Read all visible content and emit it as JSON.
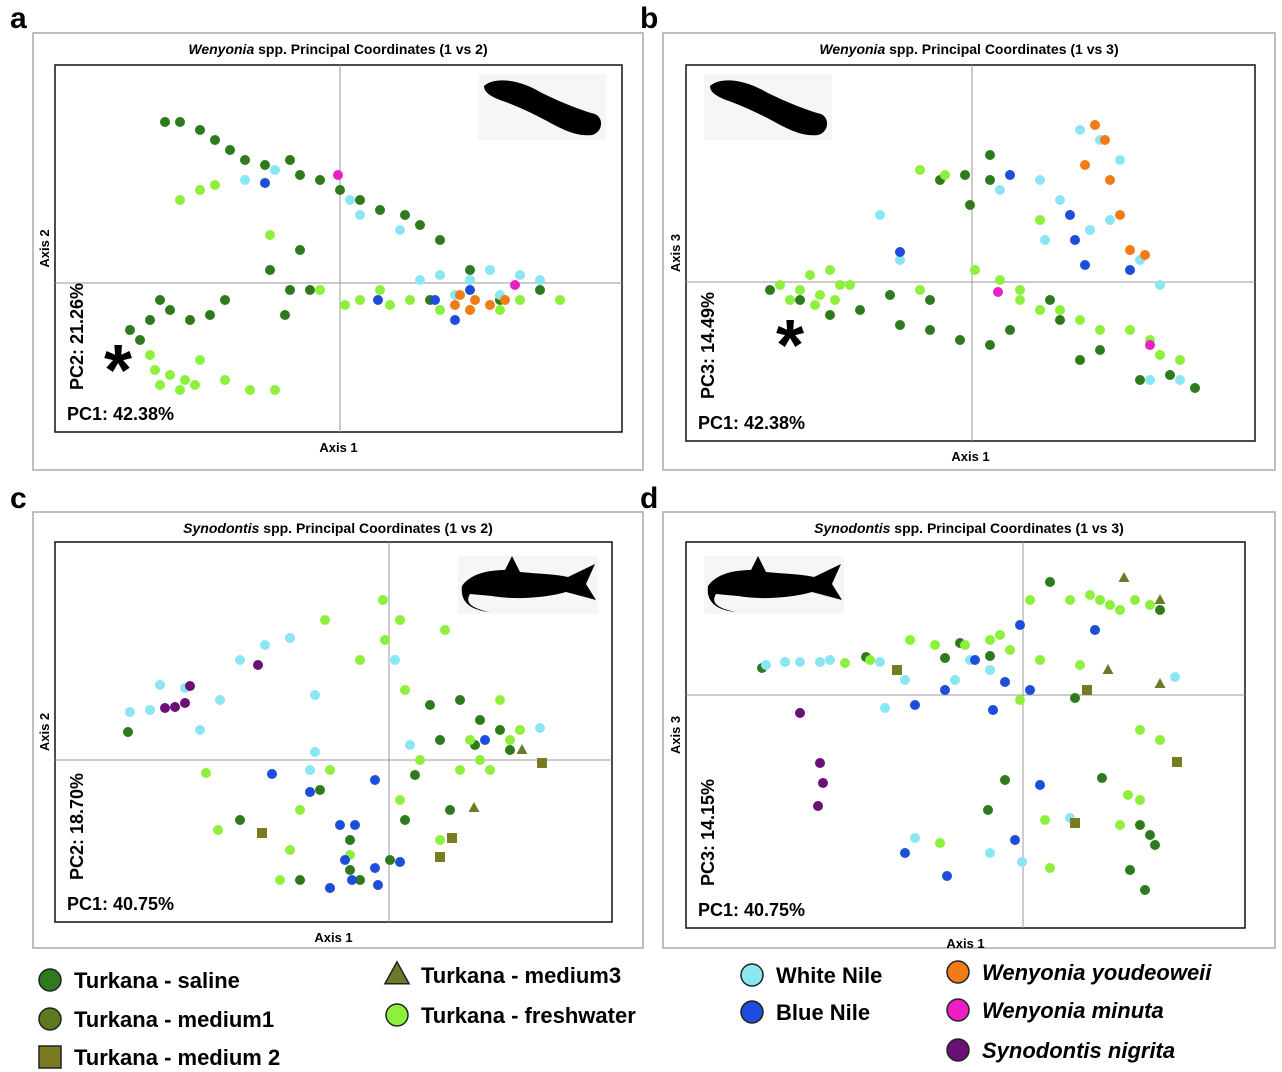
{
  "chart_data": [
    {
      "type": "scatter",
      "panel_label": "a",
      "title_italic": "Wenyonia",
      "title_rest": " spp. Principal Coordinates (1 vs 2)",
      "xlabel": "Axis 1",
      "ylabel": "Axis 2",
      "pc_x_label": "PC1: 42.38%",
      "pc_y_label": "PC2: 21.26%",
      "annotation": "*",
      "xlim": [
        -2.85,
        2.82
      ],
      "ylim": [
        -1.49,
        2.18
      ],
      "series": [
        {
          "name": "Turkana - saline",
          "color": "#2f7a1c",
          "marker": "circle",
          "x": [
            -1.75,
            -1.6,
            -1.4,
            -1.25,
            -1.1,
            -0.95,
            -0.75,
            -0.5,
            -0.4,
            -0.2,
            0,
            0.2,
            0.4,
            0.65,
            0.8,
            1.0,
            -0.4,
            -0.5,
            -0.55,
            -0.7,
            -0.3,
            -2.1,
            -1.9,
            -1.7,
            -1.5,
            -1.3,
            -1.15,
            -1.8,
            -2.0,
            1.3,
            1.6,
            2.0,
            0.9
          ],
          "y": [
            1.61,
            1.61,
            1.53,
            1.43,
            1.33,
            1.23,
            1.18,
            1.23,
            1.08,
            1.03,
            0.93,
            0.83,
            0.73,
            0.68,
            0.58,
            0.43,
            0.33,
            -0.07,
            -0.32,
            0.13,
            -0.07,
            -0.47,
            -0.37,
            -0.27,
            -0.37,
            -0.32,
            -0.17,
            -0.17,
            -0.57,
            0.13,
            -0.17,
            -0.07,
            -0.17
          ]
        },
        {
          "name": "Turkana - freshwater",
          "color": "#8cf03c",
          "marker": "circle",
          "x": [
            -1.6,
            -1.4,
            -1.25,
            -0.7,
            -0.2,
            0.05,
            0.2,
            0.5,
            0.7,
            1.0,
            1.3,
            1.6,
            1.8,
            -1.85,
            -1.7,
            -1.55,
            -1.4,
            -1.8,
            -1.6,
            -1.15,
            -0.9,
            -0.65,
            0.4,
            2.2,
            -1.9,
            -1.45
          ],
          "y": [
            0.83,
            0.93,
            0.98,
            0.48,
            -0.07,
            -0.22,
            -0.17,
            -0.22,
            -0.17,
            -0.27,
            -0.27,
            -0.27,
            -0.17,
            -0.87,
            -0.92,
            -0.97,
            -0.77,
            -1.02,
            -1.07,
            -0.97,
            -1.07,
            -1.07,
            -0.07,
            -0.17,
            -0.72,
            -1.02
          ]
        },
        {
          "name": "White Nile",
          "color": "#8ae6f2",
          "marker": "circle",
          "x": [
            -0.95,
            -0.65,
            0.2,
            0.6,
            0.8,
            1.0,
            1.3,
            1.5,
            1.8,
            2.0,
            1.6,
            1.15,
            0.1
          ],
          "y": [
            1.03,
            1.13,
            0.68,
            0.53,
            0.03,
            0.08,
            0.03,
            0.13,
            0.08,
            0.03,
            -0.12,
            -0.12,
            0.83
          ]
        },
        {
          "name": "Blue Nile",
          "color": "#1c4edb",
          "marker": "circle",
          "x": [
            -0.75,
            0.38,
            0.95,
            1.15,
            1.3
          ],
          "y": [
            1.0,
            -0.17,
            -0.17,
            -0.37,
            -0.07
          ]
        },
        {
          "name": "Wenyonia youdeoweii",
          "color": "#f07b17",
          "marker": "circle",
          "x": [
            1.2,
            1.35,
            1.5,
            1.65,
            1.3,
            1.15
          ],
          "y": [
            -0.12,
            -0.17,
            -0.22,
            -0.17,
            -0.27,
            -0.22
          ]
        },
        {
          "name": "Wenyonia minuta",
          "color": "#ec1fc6",
          "marker": "circle",
          "x": [
            -0.02,
            1.75
          ],
          "y": [
            1.08,
            -0.02
          ]
        }
      ]
    },
    {
      "type": "scatter",
      "panel_label": "b",
      "title_italic": "Wenyonia",
      "title_rest": " spp. Principal Coordinates (1 vs 3)",
      "xlabel": "Axis 1",
      "ylabel": "Axis 3",
      "pc_x_label": "PC1: 42.38%",
      "pc_y_label": "PC3: 14.49%",
      "annotation": "*",
      "xlim": [
        -2.86,
        2.83
      ],
      "ylim": [
        -1.59,
        2.17
      ],
      "series": [
        {
          "name": "Turkana - saline",
          "color": "#2f7a1c",
          "marker": "circle",
          "x": [
            -2.02,
            -1.72,
            -1.42,
            -1.12,
            -0.72,
            -0.42,
            -0.12,
            0.18,
            0.38,
            -0.42,
            -0.82,
            -0.07,
            -0.32,
            -0.02,
            0.18,
            0.18,
            0.88,
            1.28,
            1.68,
            1.98,
            2.23,
            1.08,
            0.78
          ],
          "y": [
            -0.08,
            -0.18,
            -0.33,
            -0.28,
            -0.43,
            -0.48,
            -0.58,
            -0.63,
            -0.48,
            -0.18,
            -0.13,
            1.07,
            1.02,
            0.77,
            1.02,
            1.27,
            -0.38,
            -0.68,
            -0.98,
            -0.93,
            -1.06,
            -0.78,
            -0.18
          ]
        },
        {
          "name": "Turkana - freshwater",
          "color": "#8cf03c",
          "marker": "circle",
          "x": [
            -1.92,
            -1.72,
            -1.52,
            -1.32,
            -1.62,
            -1.42,
            -1.22,
            -0.52,
            -0.27,
            0.03,
            0.28,
            0.48,
            0.68,
            0.88,
            1.08,
            1.28,
            1.58,
            1.78,
            1.88,
            2.08,
            0.68,
            0.48,
            -0.52,
            -1.82,
            -1.57,
            -1.37
          ],
          "y": [
            -0.03,
            -0.08,
            -0.13,
            -0.03,
            0.07,
            0.12,
            -0.03,
            1.12,
            1.07,
            0.12,
            0.02,
            -0.18,
            -0.28,
            -0.28,
            -0.38,
            -0.48,
            -0.48,
            -0.58,
            -0.73,
            -0.78,
            0.62,
            -0.08,
            -0.08,
            -0.18,
            -0.23,
            -0.18
          ]
        },
        {
          "name": "White Nile",
          "color": "#8ae6f2",
          "marker": "circle",
          "x": [
            -0.92,
            -0.72,
            0.28,
            0.68,
            1.08,
            1.28,
            1.48,
            0.88,
            1.18,
            1.68,
            1.88,
            2.08,
            1.78,
            0.73,
            1.38
          ],
          "y": [
            0.67,
            0.22,
            0.92,
            1.02,
            1.52,
            1.42,
            1.22,
            0.82,
            0.52,
            0.22,
            -0.03,
            -0.98,
            -0.98,
            0.42,
            0.62
          ]
        },
        {
          "name": "Blue Nile",
          "color": "#1c4edb",
          "marker": "circle",
          "x": [
            -0.72,
            0.38,
            0.98,
            1.13,
            1.58,
            1.03
          ],
          "y": [
            0.3,
            1.07,
            0.67,
            0.17,
            0.12,
            0.42
          ]
        },
        {
          "name": "Wenyonia youdeoweii",
          "color": "#f07b17",
          "marker": "circle",
          "x": [
            1.23,
            1.33,
            1.13,
            1.48,
            1.58,
            1.73,
            1.38
          ],
          "y": [
            1.57,
            1.42,
            1.17,
            0.67,
            0.32,
            0.27,
            1.02
          ]
        },
        {
          "name": "Wenyonia minuta",
          "color": "#ec1fc6",
          "marker": "circle",
          "x": [
            0.26,
            1.78
          ],
          "y": [
            -0.1,
            -0.63
          ]
        }
      ]
    },
    {
      "type": "scatter",
      "panel_label": "c",
      "title_italic": "Synodontis",
      "title_rest": " spp. Principal Coordinates (1 vs 2)",
      "xlabel": "Axis 1",
      "ylabel": "Axis 2",
      "pc_x_label": "PC1: 40.75%",
      "pc_y_label": "PC2: 18.70%",
      "xlim": [
        -3.34,
        2.23
      ],
      "ylim": [
        -1.62,
        2.18
      ],
      "series": [
        {
          "name": "Turkana - saline",
          "color": "#2f7a1c",
          "marker": "circle",
          "x": [
            -2.61,
            -1.49,
            -0.39,
            -0.39,
            -0.29,
            0.01,
            0.16,
            0.26,
            0.41,
            0.51,
            0.71,
            0.91,
            1.11,
            1.21,
            0.86,
            0.61,
            -0.69,
            -0.89
          ],
          "y": [
            0.28,
            -0.6,
            -0.8,
            -1.1,
            -1.2,
            -1.0,
            -0.6,
            -0.15,
            0.55,
            0.2,
            0.6,
            0.4,
            0.3,
            0.1,
            0.15,
            -0.5,
            -0.3,
            -1.2
          ]
        },
        {
          "name": "Turkana - freshwater",
          "color": "#8cf03c",
          "marker": "circle",
          "x": [
            -1.83,
            -1.71,
            -0.99,
            -0.64,
            -0.29,
            -0.06,
            -0.04,
            0.11,
            0.16,
            0.56,
            -0.59,
            0.11,
            0.31,
            0.51,
            0.71,
            0.81,
            0.91,
            1.01,
            1.11,
            1.21,
            1.31,
            -0.39,
            -1.09,
            -0.89
          ],
          "y": [
            -0.13,
            -0.7,
            -0.9,
            1.4,
            1.0,
            1.6,
            1.2,
            1.4,
            0.7,
            1.3,
            -0.1,
            -0.4,
            0,
            -0.8,
            -0.1,
            0.2,
            0,
            -0.1,
            0.6,
            0.2,
            0.3,
            -0.95,
            -1.2,
            -0.5
          ]
        },
        {
          "name": "White Nile",
          "color": "#8ae6f2",
          "marker": "circle",
          "x": [
            -2.59,
            -2.39,
            -2.29,
            -1.89,
            -1.69,
            -1.49,
            -1.24,
            -0.99,
            -0.74,
            -0.74,
            -0.79,
            0.06,
            0.21,
            1.51,
            -2.04
          ],
          "y": [
            0.48,
            0.5,
            0.75,
            0.3,
            0.6,
            1.0,
            1.15,
            1.22,
            0.65,
            0.08,
            -0.1,
            1.0,
            0.15,
            0.32,
            0.72
          ]
        },
        {
          "name": "Blue Nile",
          "color": "#1c4edb",
          "marker": "circle",
          "x": [
            -1.17,
            -0.79,
            -0.49,
            -0.44,
            -0.34,
            -0.14,
            -0.14,
            -0.59,
            -0.37,
            -0.11,
            0.11,
            0.96
          ],
          "y": [
            -0.14,
            -0.32,
            -0.65,
            -1.0,
            -0.65,
            -0.2,
            -1.08,
            -1.28,
            -1.2,
            -1.25,
            -1.02,
            0.2
          ]
        },
        {
          "name": "Synodontis nigrita",
          "color": "#6a1077",
          "marker": "circle",
          "x": [
            -2.24,
            -2.14,
            -2.04,
            -1.99,
            -1.31
          ],
          "y": [
            0.52,
            0.53,
            0.57,
            0.74,
            0.95
          ]
        },
        {
          "name": "Turkana - medium 2",
          "color": "#7a7a22",
          "marker": "square",
          "x": [
            -1.27,
            0.63,
            1.53,
            0.51
          ],
          "y": [
            -0.73,
            -0.78,
            -0.03,
            -0.97
          ]
        },
        {
          "name": "Turkana - medium3",
          "color": "#6b7a2a",
          "marker": "triangle",
          "x": [
            0.85,
            1.33
          ],
          "y": [
            -0.48,
            0.1
          ]
        }
      ]
    },
    {
      "type": "scatter",
      "panel_label": "d",
      "title_italic": "Synodontis",
      "title_rest": " spp. Principal Coordinates (1 vs 3)",
      "xlabel": "Axis 1",
      "ylabel": "Axis 3",
      "pc_x_label": "PC1: 40.75%",
      "pc_y_label": "PC3: 14.15%",
      "xlim": [
        -3.37,
        2.22
      ],
      "ylim": [
        -2.33,
        1.53
      ],
      "series": [
        {
          "name": "Turkana - saline",
          "color": "#2f7a1c",
          "marker": "circle",
          "x": [
            -2.61,
            -1.57,
            -0.78,
            -0.63,
            -0.33,
            0.27,
            0.52,
            -0.18,
            -0.35,
            0.79,
            1.17,
            1.27,
            1.32,
            1.07,
            1.22,
            1.37
          ],
          "y": [
            0.27,
            0.38,
            0.37,
            0.52,
            0.39,
            1.13,
            -0.03,
            -0.85,
            -1.15,
            -0.83,
            -1.3,
            -1.4,
            -1.5,
            -1.75,
            -1.95,
            0.85
          ]
        },
        {
          "name": "Turkana - freshwater",
          "color": "#8cf03c",
          "marker": "circle",
          "x": [
            -1.78,
            -1.53,
            -1.13,
            -0.88,
            -0.58,
            -0.33,
            -0.23,
            -0.13,
            -0.03,
            0.17,
            0.07,
            0.47,
            0.67,
            0.77,
            0.87,
            0.97,
            1.12,
            1.27,
            0.57,
            1.37,
            1.05,
            1.17,
            0.97,
            0.22,
            -0.83,
            0.27,
            1.17
          ],
          "y": [
            0.32,
            0.35,
            0.55,
            0.5,
            0.5,
            0.55,
            0.6,
            0.45,
            -0.05,
            0.35,
            0.95,
            0.95,
            1.0,
            0.95,
            0.9,
            0.85,
            0.95,
            0.9,
            0.3,
            -0.45,
            -1.0,
            -1.05,
            -1.3,
            -1.25,
            -1.48,
            -1.73,
            -0.35
          ]
        },
        {
          "name": "White Nile",
          "color": "#8ae6f2",
          "marker": "circle",
          "x": [
            -2.57,
            -2.38,
            -2.23,
            -2.03,
            -1.93,
            -1.43,
            -1.38,
            -1.18,
            -0.68,
            -0.53,
            -0.33,
            1.52,
            -1.08,
            -0.33,
            -0.01,
            0.47
          ],
          "y": [
            0.3,
            0.33,
            0.33,
            0.33,
            0.35,
            0.33,
            -0.13,
            0.15,
            0.15,
            0.35,
            0.25,
            0.18,
            -1.43,
            -1.58,
            -1.67,
            -1.23
          ]
        },
        {
          "name": "Blue Nile",
          "color": "#1c4edb",
          "marker": "circle",
          "x": [
            -1.08,
            -0.78,
            -0.48,
            -0.3,
            -0.18,
            -0.03,
            0.07,
            0.72,
            0.17,
            -0.08,
            -1.18,
            -0.76
          ],
          "y": [
            -0.1,
            0.05,
            0.35,
            -0.15,
            0.13,
            0.7,
            0.05,
            0.65,
            -0.9,
            -1.45,
            -1.58,
            -1.81
          ]
        },
        {
          "name": "Synodontis nigrita",
          "color": "#6a1077",
          "marker": "circle",
          "x": [
            -2.23,
            -2.03,
            -2.0,
            -2.05
          ],
          "y": [
            -0.18,
            -0.68,
            -0.88,
            -1.11
          ]
        },
        {
          "name": "Turkana - medium 2",
          "color": "#7a7a22",
          "marker": "square",
          "x": [
            -1.26,
            0.64,
            1.54,
            0.52
          ],
          "y": [
            0.25,
            0.05,
            -0.67,
            -1.28
          ]
        },
        {
          "name": "Turkana - medium3",
          "color": "#6b7a2a",
          "marker": "triangle",
          "x": [
            1.01,
            1.37,
            0.85,
            1.37
          ],
          "y": [
            1.17,
            0.11,
            0.25,
            0.95
          ]
        }
      ]
    }
  ],
  "legend": [
    {
      "name": "Turkana - saline",
      "color": "#2f7a1c",
      "marker": "circle",
      "italic": false
    },
    {
      "name": "Turkana - medium1",
      "color": "#5e7a20",
      "marker": "circle",
      "italic": false
    },
    {
      "name": "Turkana - medium 2",
      "color": "#7a7a22",
      "marker": "square",
      "italic": false
    },
    {
      "name": "Turkana - medium3",
      "color": "#6b7a2a",
      "marker": "triangle",
      "italic": false
    },
    {
      "name": "Turkana - freshwater",
      "color": "#8cf03c",
      "marker": "circle",
      "italic": false
    },
    {
      "name": "White Nile",
      "color": "#8ae6f2",
      "marker": "circle",
      "italic": false
    },
    {
      "name": "Blue Nile",
      "color": "#1c4edb",
      "marker": "circle",
      "italic": false
    },
    {
      "name": "Wenyonia youdeoweii",
      "color": "#f07b17",
      "marker": "circle",
      "italic": true
    },
    {
      "name": "Wenyonia minuta",
      "color": "#ec1fc6",
      "marker": "circle",
      "italic": true
    },
    {
      "name": "Synodontis nigrita",
      "color": "#6a1077",
      "marker": "circle",
      "italic": true
    }
  ]
}
